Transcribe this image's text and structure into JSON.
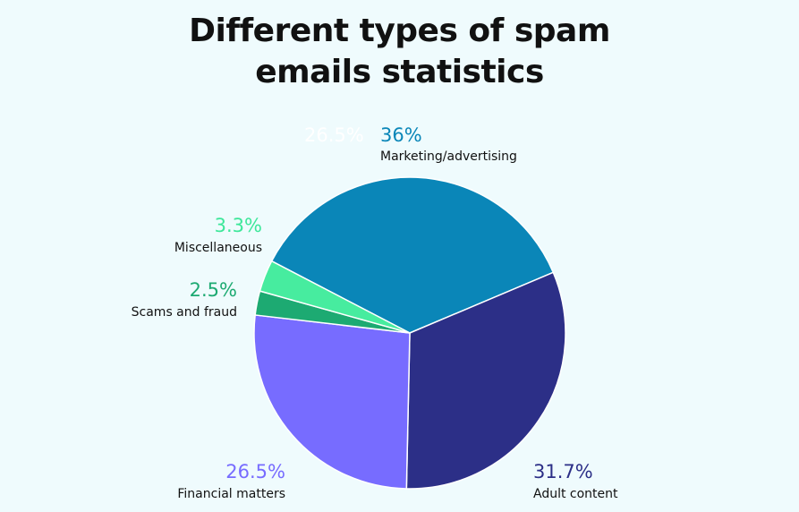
{
  "chart_data": {
    "type": "pie",
    "title_line1": "Different types of spam",
    "title_line2": "emails statistics",
    "slices": [
      {
        "name": "Marketing/advertising",
        "value": 36,
        "label": "36%",
        "color": "#0a86b8",
        "label_color": "#0a86b8"
      },
      {
        "name": "Adult content",
        "value": 31.7,
        "label": "31.7%",
        "color": "#2c2f87",
        "label_color": "#2c2f87"
      },
      {
        "name": "Financial matters",
        "value": 26.5,
        "label": "26.5%",
        "color": "#776cff",
        "label_color": "#776cff"
      },
      {
        "name": "Scams and fraud",
        "value": 2.5,
        "label": "2.5%",
        "color": "#1daa72",
        "label_color": "#1daa72"
      },
      {
        "name": "Miscellaneous",
        "value": 3.3,
        "label": "3.3%",
        "color": "#47ec9f",
        "label_color": "#3de79a"
      }
    ],
    "stray_label": "26.5%",
    "legend": "none"
  }
}
